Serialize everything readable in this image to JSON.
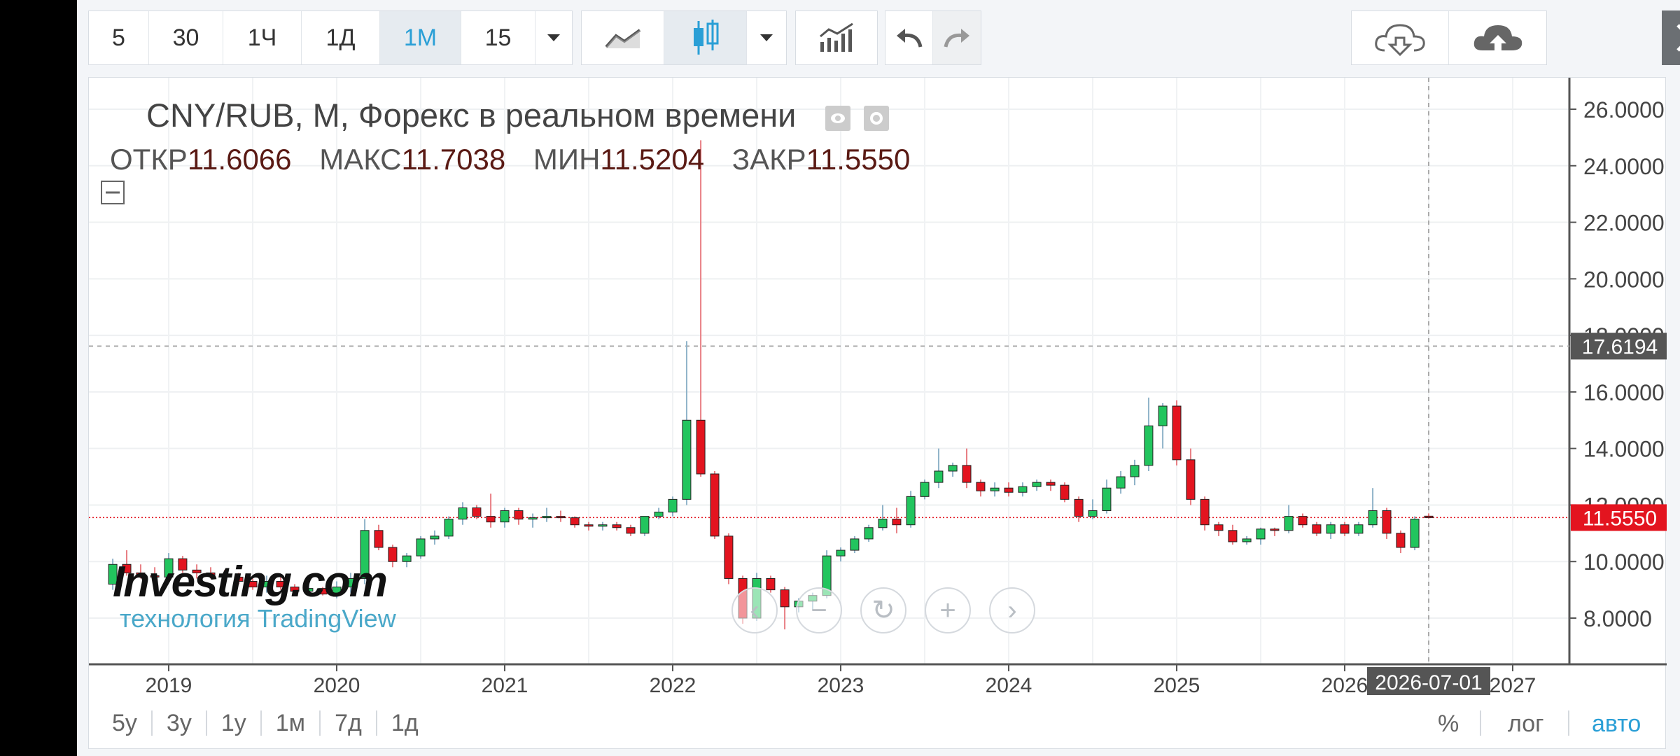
{
  "toolbar": {
    "intervals": [
      "5",
      "30",
      "1Ч",
      "1Д",
      "1М",
      "15"
    ],
    "active_interval": "1М",
    "accent": "#2a9fd6"
  },
  "legend": {
    "title": "CNY/RUB, М, Форекс в реальном времени",
    "open_label": "ОТКР",
    "open": "11.6066",
    "high_label": "МАКС",
    "high": "11.7038",
    "low_label": "МИН",
    "low": "11.5204",
    "close_label": "ЗАКР",
    "close": "11.5550"
  },
  "branding": {
    "logo": "Investing.com",
    "powered": "технология TradingView"
  },
  "crosshair": {
    "price_label": "17.6194",
    "date_label": "2026-07-01"
  },
  "last_price_label": "11.5550",
  "ranges": [
    "5y",
    "3y",
    "1y",
    "1м",
    "7д",
    "1д"
  ],
  "axis_options": {
    "percent": "%",
    "log": "лог",
    "auto": "авто"
  },
  "colors": {
    "up": "#22c55e",
    "down": "#e3141f",
    "price_tag": "#e3141f",
    "crosshair_tag": "#555555"
  },
  "chart_data": {
    "type": "candlestick",
    "title": "CNY/RUB, М, Форекс в реальном времени",
    "y_ticks": [
      "8.0000",
      "10.0000",
      "12.0000",
      "14.0000",
      "16.0000",
      "18.0000",
      "20.0000",
      "22.0000",
      "24.0000",
      "26.0000"
    ],
    "x_ticks": [
      "2019",
      "2020",
      "2021",
      "2022",
      "2023",
      "2024",
      "2025",
      "2026",
      "2027"
    ],
    "ylim": [
      6.0,
      27.0
    ],
    "xlim": [
      2018.6,
      2027.35
    ],
    "grid": true,
    "candles": [
      {
        "t": 2018.667,
        "o": 9.2,
        "h": 10.1,
        "l": 9.0,
        "c": 9.9
      },
      {
        "t": 2018.75,
        "o": 9.9,
        "h": 10.4,
        "l": 9.5,
        "c": 9.6
      },
      {
        "t": 2018.833,
        "o": 9.6,
        "h": 9.9,
        "l": 9.4,
        "c": 9.5
      },
      {
        "t": 2018.917,
        "o": 9.5,
        "h": 9.8,
        "l": 9.3,
        "c": 9.45
      },
      {
        "t": 2019.0,
        "o": 9.45,
        "h": 10.3,
        "l": 9.3,
        "c": 10.1
      },
      {
        "t": 2019.083,
        "o": 10.1,
        "h": 10.2,
        "l": 9.6,
        "c": 9.7
      },
      {
        "t": 2019.167,
        "o": 9.7,
        "h": 9.9,
        "l": 9.4,
        "c": 9.6
      },
      {
        "t": 2019.25,
        "o": 9.6,
        "h": 9.8,
        "l": 9.4,
        "c": 9.5
      },
      {
        "t": 2019.333,
        "o": 9.5,
        "h": 9.7,
        "l": 9.3,
        "c": 9.45
      },
      {
        "t": 2019.417,
        "o": 9.45,
        "h": 9.6,
        "l": 9.2,
        "c": 9.3
      },
      {
        "t": 2019.5,
        "o": 9.3,
        "h": 9.4,
        "l": 9.0,
        "c": 9.1
      },
      {
        "t": 2019.583,
        "o": 9.1,
        "h": 9.5,
        "l": 8.9,
        "c": 9.3
      },
      {
        "t": 2019.667,
        "o": 9.3,
        "h": 9.5,
        "l": 9.0,
        "c": 9.1
      },
      {
        "t": 2019.75,
        "o": 9.1,
        "h": 9.2,
        "l": 8.8,
        "c": 8.95
      },
      {
        "t": 2019.833,
        "o": 8.95,
        "h": 9.2,
        "l": 8.8,
        "c": 9.05
      },
      {
        "t": 2019.917,
        "o": 9.05,
        "h": 9.1,
        "l": 8.8,
        "c": 8.85
      },
      {
        "t": 2020.0,
        "o": 8.85,
        "h": 9.3,
        "l": 8.7,
        "c": 9.1
      },
      {
        "t": 2020.083,
        "o": 9.1,
        "h": 9.6,
        "l": 8.9,
        "c": 9.4
      },
      {
        "t": 2020.167,
        "o": 9.4,
        "h": 11.5,
        "l": 9.2,
        "c": 11.1
      },
      {
        "t": 2020.25,
        "o": 11.1,
        "h": 11.3,
        "l": 10.4,
        "c": 10.5
      },
      {
        "t": 2020.333,
        "o": 10.5,
        "h": 10.6,
        "l": 9.8,
        "c": 10.0
      },
      {
        "t": 2020.417,
        "o": 10.0,
        "h": 10.3,
        "l": 9.8,
        "c": 10.2
      },
      {
        "t": 2020.5,
        "o": 10.2,
        "h": 10.9,
        "l": 10.1,
        "c": 10.8
      },
      {
        "t": 2020.583,
        "o": 10.8,
        "h": 11.1,
        "l": 10.6,
        "c": 10.9
      },
      {
        "t": 2020.667,
        "o": 10.9,
        "h": 11.6,
        "l": 10.8,
        "c": 11.5
      },
      {
        "t": 2020.75,
        "o": 11.5,
        "h": 12.1,
        "l": 11.3,
        "c": 11.9
      },
      {
        "t": 2020.833,
        "o": 11.9,
        "h": 12.0,
        "l": 11.5,
        "c": 11.6
      },
      {
        "t": 2020.917,
        "o": 11.6,
        "h": 12.4,
        "l": 11.2,
        "c": 11.4
      },
      {
        "t": 2021.0,
        "o": 11.4,
        "h": 11.9,
        "l": 11.2,
        "c": 11.8
      },
      {
        "t": 2021.083,
        "o": 11.8,
        "h": 11.9,
        "l": 11.3,
        "c": 11.5
      },
      {
        "t": 2021.167,
        "o": 11.5,
        "h": 11.7,
        "l": 11.2,
        "c": 11.55
      },
      {
        "t": 2021.25,
        "o": 11.55,
        "h": 11.9,
        "l": 11.4,
        "c": 11.6
      },
      {
        "t": 2021.333,
        "o": 11.6,
        "h": 11.8,
        "l": 11.4,
        "c": 11.55
      },
      {
        "t": 2021.417,
        "o": 11.55,
        "h": 11.6,
        "l": 11.2,
        "c": 11.3
      },
      {
        "t": 2021.5,
        "o": 11.3,
        "h": 11.4,
        "l": 11.1,
        "c": 11.25
      },
      {
        "t": 2021.583,
        "o": 11.25,
        "h": 11.4,
        "l": 11.1,
        "c": 11.3
      },
      {
        "t": 2021.667,
        "o": 11.3,
        "h": 11.4,
        "l": 11.1,
        "c": 11.2
      },
      {
        "t": 2021.75,
        "o": 11.2,
        "h": 11.3,
        "l": 10.9,
        "c": 11.0
      },
      {
        "t": 2021.833,
        "o": 11.0,
        "h": 11.6,
        "l": 10.9,
        "c": 11.6
      },
      {
        "t": 2021.917,
        "o": 11.6,
        "h": 11.9,
        "l": 11.5,
        "c": 11.75
      },
      {
        "t": 2022.0,
        "o": 11.75,
        "h": 12.3,
        "l": 11.6,
        "c": 12.2
      },
      {
        "t": 2022.083,
        "o": 12.2,
        "h": 17.8,
        "l": 12.0,
        "c": 15.0
      },
      {
        "t": 2022.167,
        "o": 15.0,
        "h": 24.9,
        "l": 13.0,
        "c": 13.1
      },
      {
        "t": 2022.25,
        "o": 13.1,
        "h": 13.2,
        "l": 10.8,
        "c": 10.9
      },
      {
        "t": 2022.333,
        "o": 10.9,
        "h": 11.0,
        "l": 9.2,
        "c": 9.4
      },
      {
        "t": 2022.417,
        "o": 9.4,
        "h": 9.5,
        "l": 7.8,
        "c": 8.0
      },
      {
        "t": 2022.5,
        "o": 8.0,
        "h": 9.6,
        "l": 7.9,
        "c": 9.4
      },
      {
        "t": 2022.583,
        "o": 9.4,
        "h": 9.5,
        "l": 8.9,
        "c": 9.0
      },
      {
        "t": 2022.667,
        "o": 9.0,
        "h": 9.1,
        "l": 7.6,
        "c": 8.4
      },
      {
        "t": 2022.75,
        "o": 8.4,
        "h": 8.7,
        "l": 8.2,
        "c": 8.6
      },
      {
        "t": 2022.833,
        "o": 8.6,
        "h": 8.9,
        "l": 8.3,
        "c": 8.8
      },
      {
        "t": 2022.917,
        "o": 8.8,
        "h": 10.4,
        "l": 8.7,
        "c": 10.2
      },
      {
        "t": 2023.0,
        "o": 10.2,
        "h": 10.5,
        "l": 10.0,
        "c": 10.4
      },
      {
        "t": 2023.083,
        "o": 10.4,
        "h": 10.9,
        "l": 10.3,
        "c": 10.8
      },
      {
        "t": 2023.167,
        "o": 10.8,
        "h": 11.3,
        "l": 10.7,
        "c": 11.2
      },
      {
        "t": 2023.25,
        "o": 11.2,
        "h": 12.0,
        "l": 11.1,
        "c": 11.5
      },
      {
        "t": 2023.333,
        "o": 11.5,
        "h": 11.9,
        "l": 11.0,
        "c": 11.3
      },
      {
        "t": 2023.417,
        "o": 11.3,
        "h": 12.5,
        "l": 11.2,
        "c": 12.3
      },
      {
        "t": 2023.5,
        "o": 12.3,
        "h": 12.9,
        "l": 12.2,
        "c": 12.8
      },
      {
        "t": 2023.583,
        "o": 12.8,
        "h": 14.0,
        "l": 12.6,
        "c": 13.2
      },
      {
        "t": 2023.667,
        "o": 13.2,
        "h": 13.5,
        "l": 13.0,
        "c": 13.4
      },
      {
        "t": 2023.75,
        "o": 13.4,
        "h": 14.0,
        "l": 12.6,
        "c": 12.8
      },
      {
        "t": 2023.833,
        "o": 12.8,
        "h": 12.9,
        "l": 12.3,
        "c": 12.5
      },
      {
        "t": 2023.917,
        "o": 12.5,
        "h": 12.8,
        "l": 12.3,
        "c": 12.6
      },
      {
        "t": 2024.0,
        "o": 12.6,
        "h": 12.8,
        "l": 12.3,
        "c": 12.45
      },
      {
        "t": 2024.083,
        "o": 12.45,
        "h": 12.8,
        "l": 12.3,
        "c": 12.65
      },
      {
        "t": 2024.167,
        "o": 12.65,
        "h": 12.9,
        "l": 12.5,
        "c": 12.8
      },
      {
        "t": 2024.25,
        "o": 12.8,
        "h": 12.9,
        "l": 12.5,
        "c": 12.7
      },
      {
        "t": 2024.333,
        "o": 12.7,
        "h": 12.8,
        "l": 12.1,
        "c": 12.2
      },
      {
        "t": 2024.417,
        "o": 12.2,
        "h": 12.3,
        "l": 11.4,
        "c": 11.6
      },
      {
        "t": 2024.5,
        "o": 11.6,
        "h": 12.2,
        "l": 11.5,
        "c": 11.8
      },
      {
        "t": 2024.583,
        "o": 11.8,
        "h": 12.9,
        "l": 11.7,
        "c": 12.6
      },
      {
        "t": 2024.667,
        "o": 12.6,
        "h": 13.2,
        "l": 12.4,
        "c": 13.0
      },
      {
        "t": 2024.75,
        "o": 13.0,
        "h": 13.6,
        "l": 12.7,
        "c": 13.4
      },
      {
        "t": 2024.833,
        "o": 13.4,
        "h": 15.8,
        "l": 13.2,
        "c": 14.8
      },
      {
        "t": 2024.917,
        "o": 14.8,
        "h": 15.6,
        "l": 14.0,
        "c": 15.5
      },
      {
        "t": 2025.0,
        "o": 15.5,
        "h": 15.7,
        "l": 13.4,
        "c": 13.6
      },
      {
        "t": 2025.083,
        "o": 13.6,
        "h": 14.0,
        "l": 12.0,
        "c": 12.2
      },
      {
        "t": 2025.167,
        "o": 12.2,
        "h": 12.3,
        "l": 11.1,
        "c": 11.3
      },
      {
        "t": 2025.25,
        "o": 11.3,
        "h": 11.4,
        "l": 10.9,
        "c": 11.1
      },
      {
        "t": 2025.333,
        "o": 11.1,
        "h": 11.3,
        "l": 10.6,
        "c": 10.7
      },
      {
        "t": 2025.417,
        "o": 10.7,
        "h": 10.9,
        "l": 10.6,
        "c": 10.8
      },
      {
        "t": 2025.5,
        "o": 10.8,
        "h": 11.2,
        "l": 10.6,
        "c": 11.15
      },
      {
        "t": 2025.583,
        "o": 11.15,
        "h": 11.2,
        "l": 10.9,
        "c": 11.1
      },
      {
        "t": 2025.667,
        "o": 11.1,
        "h": 12.0,
        "l": 11.0,
        "c": 11.6
      },
      {
        "t": 2025.75,
        "o": 11.6,
        "h": 11.7,
        "l": 11.2,
        "c": 11.3
      },
      {
        "t": 2025.833,
        "o": 11.3,
        "h": 11.4,
        "l": 10.9,
        "c": 11.0
      },
      {
        "t": 2025.917,
        "o": 11.0,
        "h": 11.4,
        "l": 10.8,
        "c": 11.3
      },
      {
        "t": 2026.0,
        "o": 11.3,
        "h": 11.4,
        "l": 10.9,
        "c": 11.0
      },
      {
        "t": 2026.083,
        "o": 11.0,
        "h": 11.4,
        "l": 10.9,
        "c": 11.3
      },
      {
        "t": 2026.167,
        "o": 11.3,
        "h": 12.6,
        "l": 11.2,
        "c": 11.8
      },
      {
        "t": 2026.25,
        "o": 11.8,
        "h": 11.9,
        "l": 10.8,
        "c": 11.0
      },
      {
        "t": 2026.333,
        "o": 11.0,
        "h": 11.1,
        "l": 10.3,
        "c": 10.5
      },
      {
        "t": 2026.417,
        "o": 10.5,
        "h": 11.6,
        "l": 10.4,
        "c": 11.5
      },
      {
        "t": 2026.5,
        "o": 11.6066,
        "h": 11.7038,
        "l": 11.5204,
        "c": 11.555
      }
    ],
    "last_price": 11.555,
    "crosshair": {
      "price": 17.6194,
      "date": 2026.5
    }
  }
}
